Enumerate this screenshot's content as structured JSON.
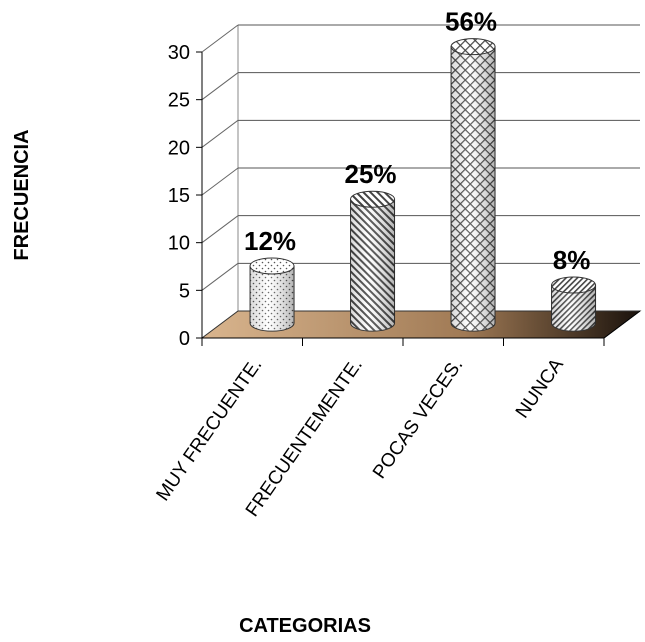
{
  "chart_data": {
    "type": "bar",
    "categories": [
      "MUY FRECUENTE.",
      "FRECUENTEMENTE.",
      "POCAS VECES.",
      "NUNCA"
    ],
    "series": [
      {
        "values": [
          6,
          13,
          29,
          4
        ]
      }
    ],
    "data_labels": [
      "12%",
      "25%",
      "56%",
      "8%"
    ],
    "xlabel": "CATEGORIAS",
    "ylabel": "FRECUENCIA",
    "ylim": [
      0,
      30
    ],
    "yticks": [
      0,
      5,
      10,
      15,
      20,
      25,
      30
    ],
    "grid": true,
    "style": "3d-cylinder",
    "floor_color": "#c8a27a"
  }
}
